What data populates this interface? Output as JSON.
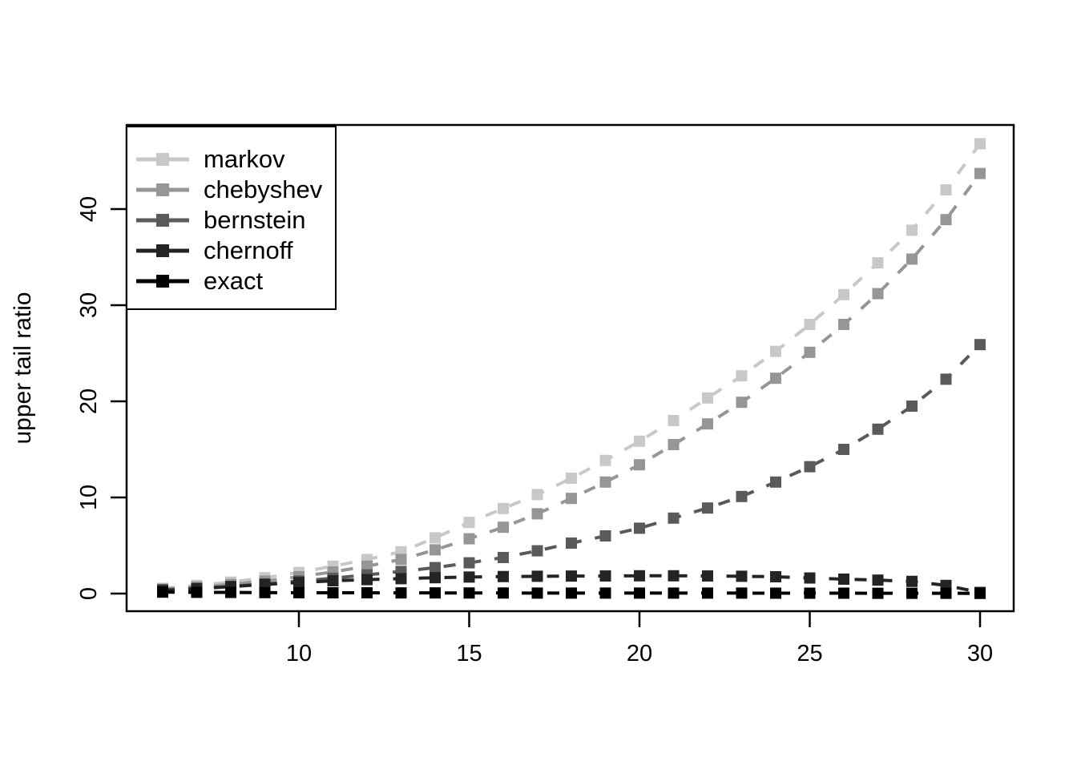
{
  "chart_data": {
    "type": "line",
    "title": "",
    "xlabel": "",
    "ylabel": "upper tail ratio",
    "grid": false,
    "legend_position": "topleft",
    "marker": "filled-square",
    "line_style": "dashed",
    "xlim": [
      5.2,
      31.0
    ],
    "ylim": [
      -1.8,
      48.8
    ],
    "xticks": [
      "10",
      "15",
      "20",
      "25",
      "30"
    ],
    "xtick_values": [
      10,
      15,
      20,
      25,
      30
    ],
    "yticks": [
      "0",
      "10",
      "20",
      "30",
      "40"
    ],
    "ytick_values": [
      0,
      10,
      20,
      30,
      40
    ],
    "x": [
      6,
      7,
      8,
      9,
      10,
      11,
      12,
      13,
      14,
      15,
      16,
      17,
      18,
      19,
      20,
      21,
      22,
      23,
      24,
      25,
      26,
      27,
      28,
      29,
      30
    ],
    "series": [
      {
        "name": "markov",
        "color": "#c8c8c8",
        "values": [
          0.55,
          0.85,
          1.2,
          1.65,
          2.2,
          2.85,
          3.55,
          4.35,
          5.8,
          7.4,
          8.85,
          10.3,
          12.0,
          13.85,
          15.85,
          18.0,
          20.35,
          22.65,
          25.2,
          28.0,
          31.1,
          34.4,
          37.8,
          42.0,
          46.8
        ]
      },
      {
        "name": "chebyshev",
        "color": "#969696",
        "values": [
          0.45,
          0.68,
          0.95,
          1.3,
          1.75,
          2.25,
          2.85,
          3.55,
          4.55,
          5.7,
          6.9,
          8.3,
          9.9,
          11.6,
          13.4,
          15.5,
          17.65,
          19.9,
          22.4,
          25.1,
          28.0,
          31.2,
          34.8,
          38.9,
          43.7
        ]
      },
      {
        "name": "bernstein",
        "color": "#5a5a5a",
        "values": [
          0.4,
          0.55,
          0.75,
          1.0,
          1.3,
          1.6,
          1.95,
          2.3,
          2.7,
          3.2,
          3.75,
          4.45,
          5.25,
          6.0,
          6.8,
          7.85,
          8.9,
          10.1,
          11.6,
          13.2,
          15.0,
          17.1,
          19.5,
          22.3,
          25.9
        ]
      },
      {
        "name": "chernoff",
        "color": "#242424",
        "values": [
          0.3,
          0.5,
          0.72,
          0.95,
          1.15,
          1.33,
          1.45,
          1.55,
          1.65,
          1.72,
          1.77,
          1.8,
          1.82,
          1.83,
          1.85,
          1.85,
          1.83,
          1.8,
          1.75,
          1.62,
          1.5,
          1.4,
          1.27,
          0.85,
          0.12
        ]
      },
      {
        "name": "exact",
        "color": "#000000",
        "values": [
          0.15,
          0.13,
          0.12,
          0.1,
          0.09,
          0.08,
          0.08,
          0.07,
          0.07,
          0.06,
          0.06,
          0.05,
          0.05,
          0.05,
          0.05,
          0.05,
          0.05,
          0.05,
          0.04,
          0.04,
          0.04,
          0.03,
          0.03,
          0.03,
          0.02
        ]
      }
    ],
    "legend": [
      {
        "label": "markov",
        "color": "#c8c8c8"
      },
      {
        "label": "chebyshev",
        "color": "#969696"
      },
      {
        "label": "bernstein",
        "color": "#5a5a5a"
      },
      {
        "label": "chernoff",
        "color": "#242424"
      },
      {
        "label": "exact",
        "color": "#000000"
      }
    ]
  }
}
